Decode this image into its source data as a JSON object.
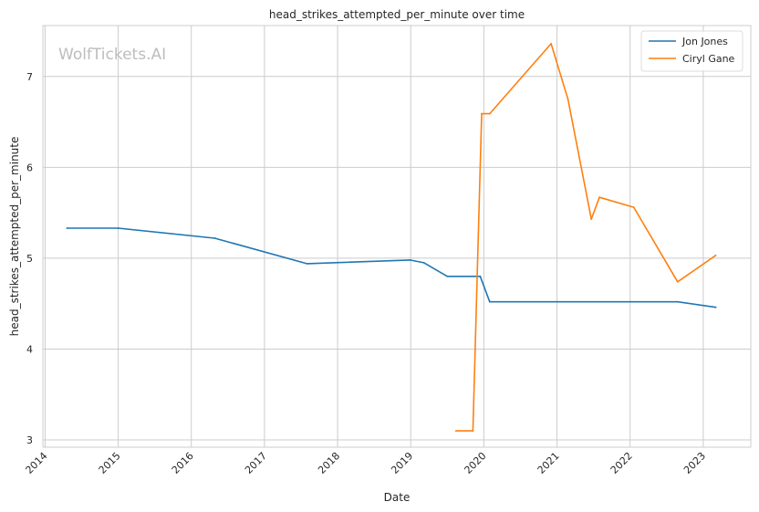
{
  "chart_data": {
    "type": "line",
    "title": "head_strikes_attempted_per_minute over time",
    "xlabel": "Date",
    "ylabel": "head_strikes_attempted_per_minute",
    "watermark": "WolfTickets.AI",
    "x_ticks": [
      "2014",
      "2015",
      "2016",
      "2017",
      "2018",
      "2019",
      "2020",
      "2021",
      "2022",
      "2023"
    ],
    "y_ticks": [
      3,
      4,
      5,
      6,
      7
    ],
    "xlim": [
      2013.97,
      2023.65
    ],
    "ylim": [
      2.92,
      7.56
    ],
    "grid": true,
    "legend_position": "top-right",
    "series": [
      {
        "name": "Jon Jones",
        "color": "#1f77b4",
        "points": [
          [
            2014.3,
            5.33
          ],
          [
            2015.0,
            5.33
          ],
          [
            2016.32,
            5.22
          ],
          [
            2017.58,
            4.94
          ],
          [
            2018.99,
            4.98
          ],
          [
            2019.18,
            4.95
          ],
          [
            2019.5,
            4.8
          ],
          [
            2019.95,
            4.8
          ],
          [
            2020.08,
            4.52
          ],
          [
            2022.65,
            4.52
          ],
          [
            2023.17,
            4.46
          ]
        ]
      },
      {
        "name": "Ciryl Gane",
        "color": "#ff7f0e",
        "points": [
          [
            2019.62,
            3.1
          ],
          [
            2019.85,
            3.1
          ],
          [
            2019.97,
            6.59
          ],
          [
            2020.08,
            6.59
          ],
          [
            2020.92,
            7.36
          ],
          [
            2021.15,
            6.75
          ],
          [
            2021.47,
            5.43
          ],
          [
            2021.58,
            5.67
          ],
          [
            2022.05,
            5.56
          ],
          [
            2022.65,
            4.74
          ],
          [
            2023.17,
            5.03
          ]
        ]
      }
    ]
  }
}
